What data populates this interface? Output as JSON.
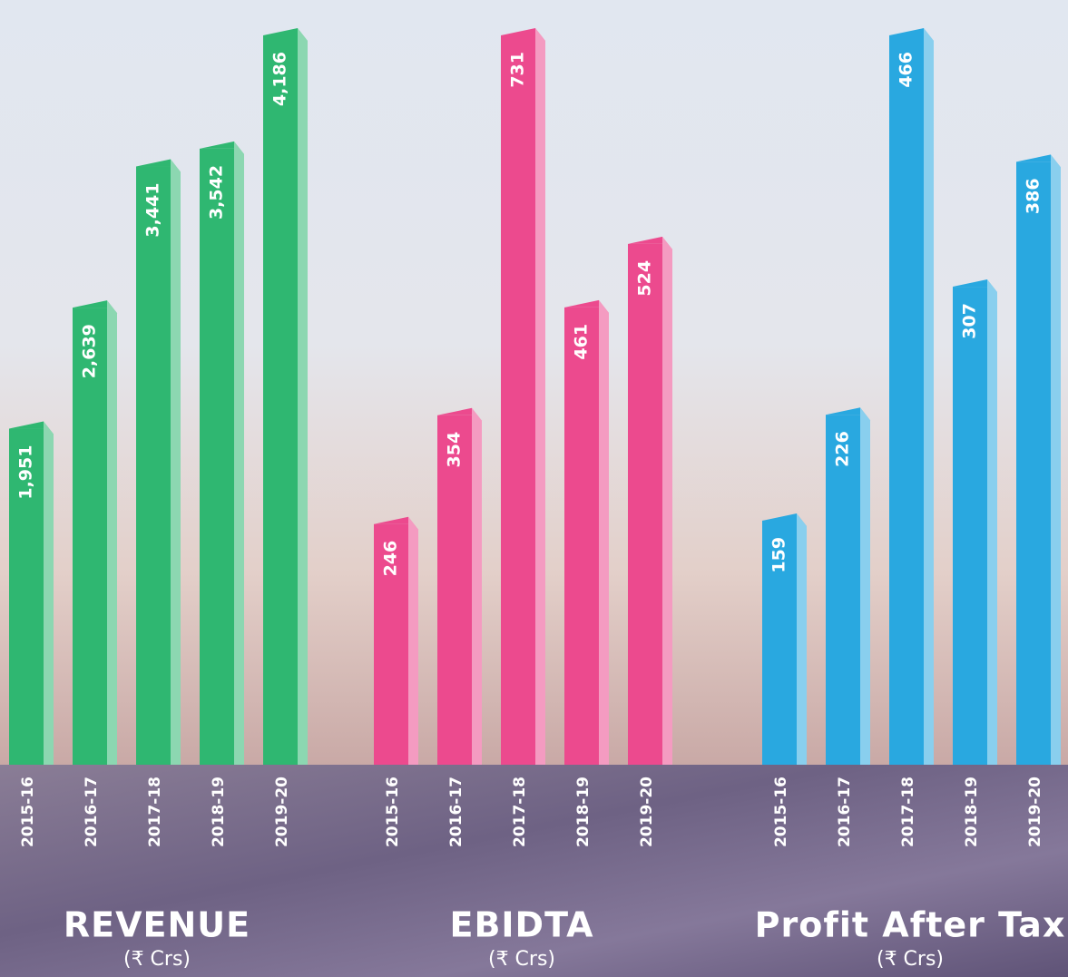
{
  "chart_data": [
    {
      "type": "bar",
      "title": "REVENUE",
      "subtitle": "(₹ Crs)",
      "categories": [
        "2015-16",
        "2016-17",
        "2017-18",
        "2018-19",
        "2019-20"
      ],
      "values": [
        1951,
        2639,
        3441,
        3542,
        4186
      ],
      "value_labels": [
        "1,951",
        "2,639",
        "3,441",
        "3,542",
        "4,186"
      ],
      "color": "#2fb771"
    },
    {
      "type": "bar",
      "title": "EBIDTA",
      "subtitle": "(₹ Crs)",
      "categories": [
        "2015-16",
        "2016-17",
        "2017-18",
        "2018-19",
        "2019-20"
      ],
      "values": [
        246,
        354,
        731,
        461,
        524
      ],
      "value_labels": [
        "246",
        "354",
        "731",
        "461",
        "524"
      ],
      "color": "#ec4a8e"
    },
    {
      "type": "bar",
      "title": "Profit After Tax",
      "subtitle": "(₹ Crs)",
      "categories": [
        "2015-16",
        "2016-17",
        "2017-18",
        "2018-19",
        "2019-20"
      ],
      "values": [
        159,
        226,
        466,
        307,
        386
      ],
      "value_labels": [
        "159",
        "226",
        "466",
        "307",
        "386"
      ],
      "color": "#29a8e0"
    }
  ]
}
